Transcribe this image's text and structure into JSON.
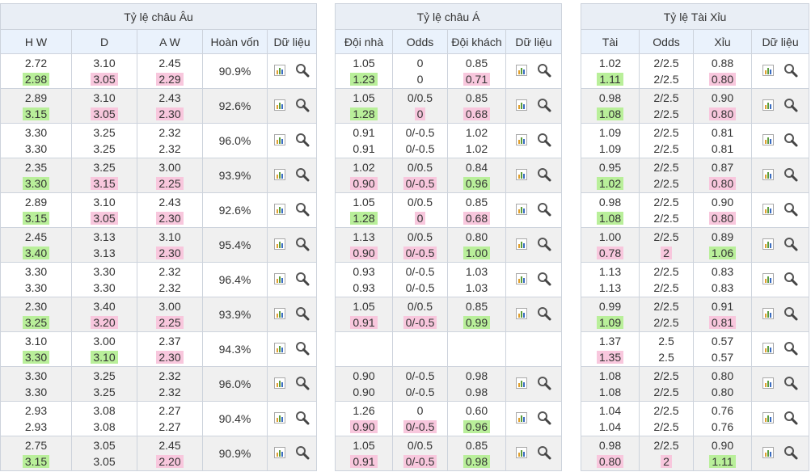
{
  "tables": [
    {
      "title": "Tỷ lệ châu Âu",
      "columns": [
        "H W",
        "D",
        "A W",
        "Hoàn vốn",
        "Dữ liệu"
      ],
      "rows": [
        {
          "cells": [
            [
              "2.72",
              "2.98",
              "#b9ef9a"
            ],
            [
              "3.10",
              "3.05",
              "#f8c7dd"
            ],
            [
              "2.45",
              "2.29",
              "#f8c7dd"
            ]
          ],
          "return": "90.9%"
        },
        {
          "cells": [
            [
              "2.89",
              "3.15",
              "#b9ef9a"
            ],
            [
              "3.10",
              "3.05",
              "#f8c7dd"
            ],
            [
              "2.43",
              "2.30",
              "#f8c7dd"
            ]
          ],
          "return": "92.6%"
        },
        {
          "cells": [
            [
              "3.30",
              "3.30"
            ],
            [
              "3.25",
              "3.25"
            ],
            [
              "2.32",
              "2.32"
            ]
          ],
          "return": "96.0%"
        },
        {
          "cells": [
            [
              "2.35",
              "3.30",
              "#b9ef9a"
            ],
            [
              "3.25",
              "3.15",
              "#f8c7dd"
            ],
            [
              "3.00",
              "2.25",
              "#f8c7dd"
            ]
          ],
          "return": "93.9%"
        },
        {
          "cells": [
            [
              "2.89",
              "3.15",
              "#b9ef9a"
            ],
            [
              "3.10",
              "3.05",
              "#f8c7dd"
            ],
            [
              "2.43",
              "2.30",
              "#f8c7dd"
            ]
          ],
          "return": "92.6%"
        },
        {
          "cells": [
            [
              "2.45",
              "3.40",
              "#b9ef9a"
            ],
            [
              "3.13",
              "3.13"
            ],
            [
              "3.10",
              "2.30",
              "#f8c7dd"
            ]
          ],
          "return": "95.4%"
        },
        {
          "cells": [
            [
              "3.30",
              "3.30"
            ],
            [
              "3.30",
              "3.30"
            ],
            [
              "2.32",
              "2.32"
            ]
          ],
          "return": "96.4%"
        },
        {
          "cells": [
            [
              "2.30",
              "3.25",
              "#b9ef9a"
            ],
            [
              "3.40",
              "3.20",
              "#f8c7dd"
            ],
            [
              "3.00",
              "2.25",
              "#f8c7dd"
            ]
          ],
          "return": "93.9%"
        },
        {
          "cells": [
            [
              "3.10",
              "3.30",
              "#b9ef9a"
            ],
            [
              "3.00",
              "3.10",
              "#b9ef9a"
            ],
            [
              "2.37",
              "2.30",
              "#f8c7dd"
            ]
          ],
          "return": "94.3%"
        },
        {
          "cells": [
            [
              "3.30",
              "3.30"
            ],
            [
              "3.25",
              "3.25"
            ],
            [
              "2.32",
              "2.32"
            ]
          ],
          "return": "96.0%"
        },
        {
          "cells": [
            [
              "2.93",
              "2.93"
            ],
            [
              "3.08",
              "3.08"
            ],
            [
              "2.27",
              "2.27"
            ]
          ],
          "return": "90.4%"
        },
        {
          "cells": [
            [
              "2.75",
              "3.15",
              "#b9ef9a"
            ],
            [
              "3.05",
              "3.05"
            ],
            [
              "2.45",
              "2.20",
              "#f8c7dd"
            ]
          ],
          "return": "90.9%"
        }
      ]
    },
    {
      "title": "Tỷ lệ châu Á",
      "columns": [
        "Đội nhà",
        "Odds",
        "Đội khách",
        "Dữ liệu"
      ],
      "rows": [
        {
          "cells": [
            [
              "1.05",
              "1.23",
              "#b9ef9a"
            ],
            [
              "0",
              "0"
            ],
            [
              "0.85",
              "0.71",
              "#f8c7dd"
            ]
          ]
        },
        {
          "cells": [
            [
              "1.05",
              "1.28",
              "#b9ef9a"
            ],
            [
              "0/0.5",
              "0",
              "#f8c7dd"
            ],
            [
              "0.85",
              "0.68",
              "#f8c7dd"
            ]
          ]
        },
        {
          "cells": [
            [
              "0.91",
              "0.91"
            ],
            [
              "0/-0.5",
              "0/-0.5"
            ],
            [
              "1.02",
              "1.02"
            ]
          ]
        },
        {
          "cells": [
            [
              "1.02",
              "0.90",
              "#f8c7dd"
            ],
            [
              "0/0.5",
              "0/-0.5",
              "#f8c7dd"
            ],
            [
              "0.84",
              "0.96",
              "#b9ef9a"
            ]
          ]
        },
        {
          "cells": [
            [
              "1.05",
              "1.28",
              "#b9ef9a"
            ],
            [
              "0/0.5",
              "0",
              "#f8c7dd"
            ],
            [
              "0.85",
              "0.68",
              "#f8c7dd"
            ]
          ]
        },
        {
          "cells": [
            [
              "1.13",
              "0.90",
              "#f8c7dd"
            ],
            [
              "0/0.5",
              "0/-0.5",
              "#f8c7dd"
            ],
            [
              "0.80",
              "1.00",
              "#b9ef9a"
            ]
          ]
        },
        {
          "cells": [
            [
              "0.93",
              "0.93"
            ],
            [
              "0/-0.5",
              "0/-0.5"
            ],
            [
              "1.03",
              "1.03"
            ]
          ]
        },
        {
          "cells": [
            [
              "1.05",
              "0.91",
              "#f8c7dd"
            ],
            [
              "0/0.5",
              "0/-0.5",
              "#f8c7dd"
            ],
            [
              "0.85",
              "0.99",
              "#b9ef9a"
            ]
          ]
        },
        {
          "cells": []
        },
        {
          "cells": [
            [
              "0.90",
              "0.90"
            ],
            [
              "0/-0.5",
              "0/-0.5"
            ],
            [
              "0.98",
              "0.98"
            ]
          ]
        },
        {
          "cells": [
            [
              "1.26",
              "0.90",
              "#f8c7dd"
            ],
            [
              "0",
              "0/-0.5",
              "#f8c7dd"
            ],
            [
              "0.60",
              "0.96",
              "#b9ef9a"
            ]
          ]
        },
        {
          "cells": [
            [
              "1.05",
              "0.91",
              "#f8c7dd"
            ],
            [
              "0/0.5",
              "0/-0.5",
              "#f8c7dd"
            ],
            [
              "0.85",
              "0.98",
              "#b9ef9a"
            ]
          ]
        }
      ]
    },
    {
      "title": "Tỷ lệ Tài Xỉu",
      "columns": [
        "Tài",
        "Odds",
        "Xỉu",
        "Dữ liệu"
      ],
      "rows": [
        {
          "cells": [
            [
              "1.02",
              "1.11",
              "#b9ef9a"
            ],
            [
              "2/2.5",
              "2/2.5"
            ],
            [
              "0.88",
              "0.80",
              "#f8c7dd"
            ]
          ]
        },
        {
          "cells": [
            [
              "0.98",
              "1.08",
              "#b9ef9a"
            ],
            [
              "2/2.5",
              "2/2.5"
            ],
            [
              "0.90",
              "0.80",
              "#f8c7dd"
            ]
          ]
        },
        {
          "cells": [
            [
              "1.09",
              "1.09"
            ],
            [
              "2/2.5",
              "2/2.5"
            ],
            [
              "0.81",
              "0.81"
            ]
          ]
        },
        {
          "cells": [
            [
              "0.95",
              "1.02",
              "#b9ef9a"
            ],
            [
              "2/2.5",
              "2/2.5"
            ],
            [
              "0.87",
              "0.80",
              "#f8c7dd"
            ]
          ]
        },
        {
          "cells": [
            [
              "0.98",
              "1.08",
              "#b9ef9a"
            ],
            [
              "2/2.5",
              "2/2.5"
            ],
            [
              "0.90",
              "0.80",
              "#f8c7dd"
            ]
          ]
        },
        {
          "cells": [
            [
              "1.00",
              "0.78",
              "#f8c7dd"
            ],
            [
              "2/2.5",
              "2",
              "#f8c7dd"
            ],
            [
              "0.89",
              "1.06",
              "#b9ef9a"
            ]
          ]
        },
        {
          "cells": [
            [
              "1.13",
              "1.13"
            ],
            [
              "2/2.5",
              "2/2.5"
            ],
            [
              "0.83",
              "0.83"
            ]
          ]
        },
        {
          "cells": [
            [
              "0.99",
              "1.09",
              "#b9ef9a"
            ],
            [
              "2/2.5",
              "2/2.5"
            ],
            [
              "0.91",
              "0.81",
              "#f8c7dd"
            ]
          ]
        },
        {
          "cells": [
            [
              "1.37",
              "1.35",
              "#f8c7dd"
            ],
            [
              "2.5",
              "2.5"
            ],
            [
              "0.57",
              "0.57"
            ]
          ]
        },
        {
          "cells": [
            [
              "1.08",
              "1.08"
            ],
            [
              "2/2.5",
              "2/2.5"
            ],
            [
              "0.80",
              "0.80"
            ]
          ]
        },
        {
          "cells": [
            [
              "1.04",
              "1.04"
            ],
            [
              "2/2.5",
              "2/2.5"
            ],
            [
              "0.76",
              "0.76"
            ]
          ]
        },
        {
          "cells": [
            [
              "0.98",
              "0.80",
              "#f8c7dd"
            ],
            [
              "2/2.5",
              "2",
              "#f8c7dd"
            ],
            [
              "0.90",
              "1.11",
              "#b9ef9a"
            ]
          ]
        }
      ]
    }
  ]
}
